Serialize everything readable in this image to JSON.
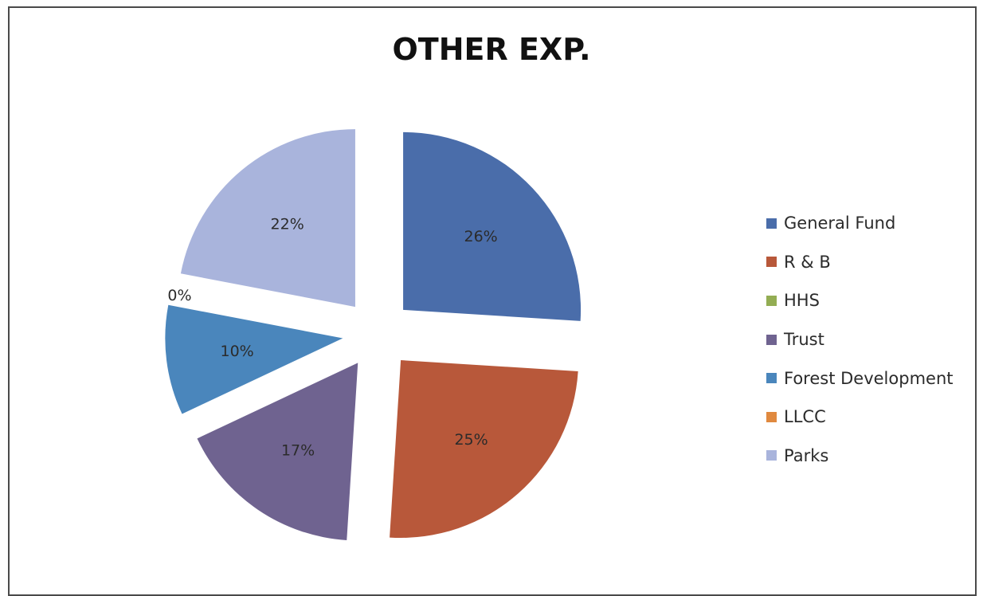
{
  "chart_data": {
    "type": "pie",
    "title": "OTHER EXP.",
    "legend_position": "right",
    "exploded": true,
    "categories": [
      "General Fund",
      "R & B",
      "HHS",
      "Trust",
      "Forest Development",
      "LLCC",
      "Parks"
    ],
    "values": [
      26,
      25,
      0,
      17,
      10,
      0,
      22
    ],
    "labels": [
      "26%",
      "25%",
      "",
      "17%",
      "10%",
      "0%",
      "22%"
    ],
    "colors": [
      "#4a6daa",
      "#b8583a",
      "#93ad53",
      "#6f6390",
      "#4a86bc",
      "#e0893f",
      "#a9b4dc"
    ]
  }
}
